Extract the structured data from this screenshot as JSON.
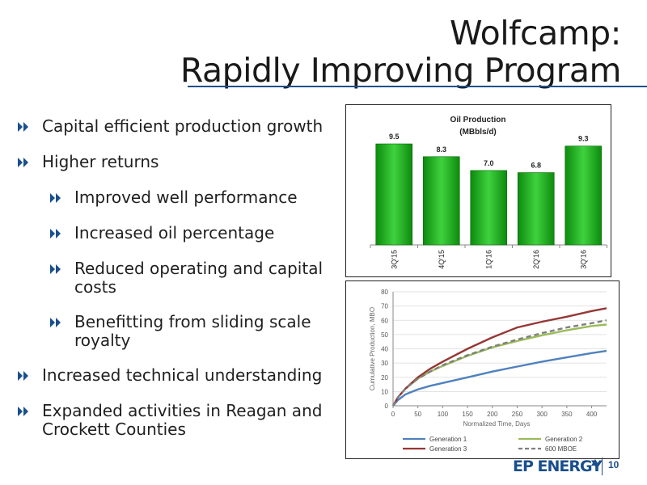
{
  "slide": {
    "title_line1": "Wolfcamp:",
    "title_line2": "Rapidly Improving Program",
    "bullets": [
      {
        "level": 1,
        "text": "Capital efficient production growth"
      },
      {
        "level": 1,
        "text": "Higher returns"
      },
      {
        "level": 2,
        "text": "Improved well performance"
      },
      {
        "level": 2,
        "text": "Increased oil percentage"
      },
      {
        "level": 2,
        "text": "Reduced operating and capital costs"
      },
      {
        "level": 2,
        "text": "Benefitting from sliding scale royalty"
      },
      {
        "level": 1,
        "text": "Increased technical understanding"
      },
      {
        "level": 1,
        "text": "Expanded activities in Reagan and Crockett Counties"
      }
    ],
    "footer": {
      "logo": "EP ENERGY",
      "page_number": "10"
    },
    "colors": {
      "accent": "#1a4f8b",
      "bar": "#19a519"
    }
  },
  "chart_data": [
    {
      "type": "bar",
      "title": "Oil Production",
      "subtitle": "(MBbls/d)",
      "categories": [
        "3Q'15",
        "4Q'15",
        "1Q'16",
        "2Q'16",
        "3Q'16"
      ],
      "values": [
        9.5,
        8.3,
        7.0,
        6.8,
        9.3
      ],
      "data_labels": [
        "9.5",
        "8.3",
        "7.0",
        "6.8",
        "9.3"
      ],
      "ylim": [
        0,
        11
      ]
    },
    {
      "type": "line",
      "xlabel": "Normalized Time, Days",
      "ylabel": "Cumulative Production, MBO",
      "xlim": [
        0,
        430
      ],
      "ylim": [
        0,
        80
      ],
      "xticks": [
        0,
        50,
        100,
        150,
        200,
        250,
        300,
        350,
        400
      ],
      "yticks": [
        0,
        10,
        20,
        30,
        40,
        50,
        60,
        70,
        80
      ],
      "legend_position": "bottom",
      "series": [
        {
          "name": "Generation 1",
          "color": "#4f81bd",
          "dash": false,
          "x": [
            0,
            10,
            25,
            50,
            75,
            100,
            150,
            200,
            250,
            300,
            350,
            400,
            430
          ],
          "y": [
            0,
            4,
            8,
            11.5,
            14,
            16,
            20,
            24,
            27.5,
            31,
            34,
            37,
            38.5
          ]
        },
        {
          "name": "Generation 2",
          "color": "#9bbb59",
          "dash": false,
          "x": [
            0,
            10,
            25,
            50,
            75,
            100,
            150,
            200,
            250,
            300,
            350,
            400,
            430
          ],
          "y": [
            0,
            6,
            12,
            19,
            24,
            28,
            35,
            41,
            45.5,
            49.5,
            53,
            56,
            57
          ]
        },
        {
          "name": "Generation 3",
          "color": "#953735",
          "dash": false,
          "x": [
            0,
            10,
            25,
            50,
            75,
            100,
            150,
            200,
            250,
            300,
            350,
            400,
            430
          ],
          "y": [
            0,
            6,
            12,
            20,
            26,
            31,
            40,
            48,
            55,
            59,
            62.5,
            66.5,
            68.5
          ]
        },
        {
          "name": "600 MBOE",
          "color": "#7f7f7f",
          "dash": true,
          "x": [
            0,
            10,
            25,
            50,
            75,
            100,
            150,
            200,
            250,
            300,
            350,
            400,
            430
          ],
          "y": [
            0,
            6,
            12,
            19,
            24,
            28.5,
            35.5,
            41.5,
            46.5,
            51,
            55,
            58,
            60
          ]
        }
      ]
    }
  ]
}
